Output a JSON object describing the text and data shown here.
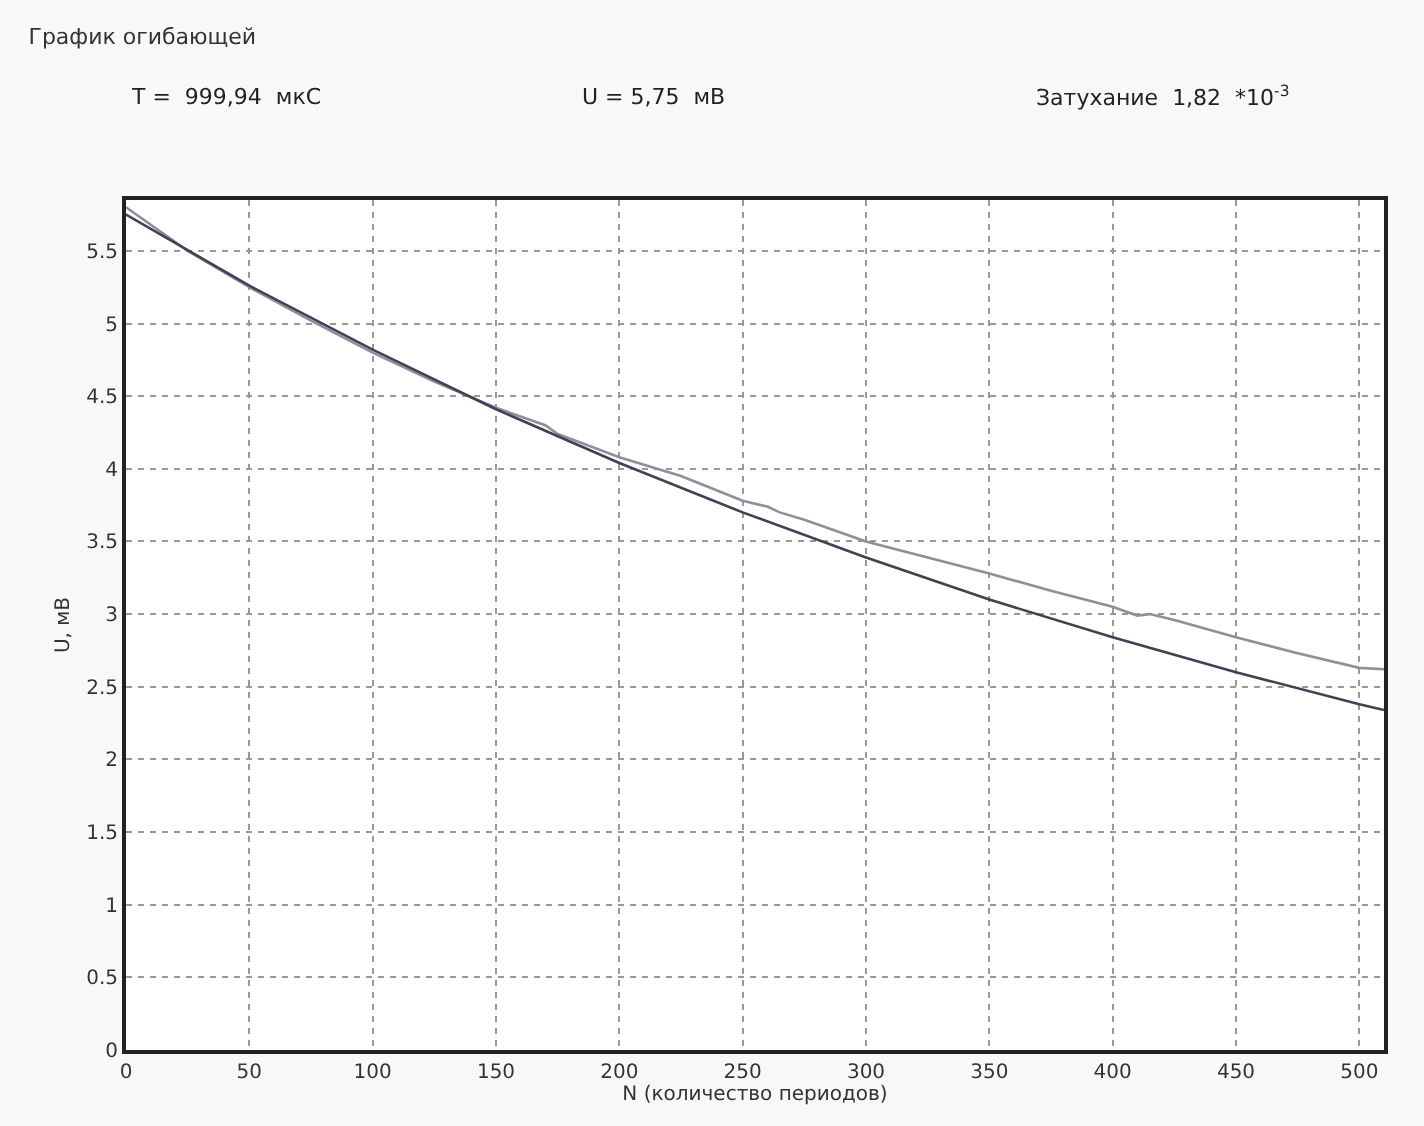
{
  "chart_data": {
    "type": "line",
    "title": "График огибающей",
    "annotations": [
      "T =  999,94  мкС",
      "U = 5,75  мВ",
      "Затухание  1,82  *10$^{-3}$"
    ],
    "xlabel": "N (количество периодов)",
    "ylabel": "U, мВ",
    "series": [
      {
        "color": "#8e8e9c",
        "x": [
          0,
          25,
          50,
          75,
          100,
          125,
          150,
          170,
          175,
          200,
          225,
          250,
          260,
          265,
          275,
          300,
          325,
          350,
          375,
          400,
          405,
          410,
          415,
          425,
          450,
          475,
          500,
          510
        ],
        "values": [
          5.8,
          5.5,
          5.25,
          5.02,
          4.8,
          4.6,
          4.42,
          4.3,
          4.24,
          4.08,
          3.95,
          3.78,
          3.74,
          3.7,
          3.65,
          3.5,
          3.39,
          3.28,
          3.16,
          3.05,
          3.02,
          2.99,
          3.0,
          2.96,
          2.84,
          2.73,
          2.63,
          2.62
        ]
      },
      {
        "color": "#3c4454",
        "x": [
          0,
          50,
          100,
          150,
          200,
          250,
          300,
          350,
          400,
          450,
          500,
          510
        ],
        "values": [
          5.75,
          5.26,
          4.82,
          4.41,
          4.04,
          3.7,
          3.39,
          3.1,
          2.84,
          2.6,
          2.38,
          2.34
        ]
      }
    ],
    "xlim": [
      0,
      510
    ],
    "xticks": [
      0,
      50,
      100,
      150,
      200,
      250,
      300,
      350,
      400,
      450,
      500
    ],
    "ylim": [
      0,
      5.85
    ],
    "yticks": [
      0,
      0.5,
      1,
      1.5,
      2,
      2.5,
      3,
      3.5,
      4,
      4.5,
      5,
      5.5
    ],
    "grid": true,
    "marker": "none",
    "line_style": "solid"
  }
}
